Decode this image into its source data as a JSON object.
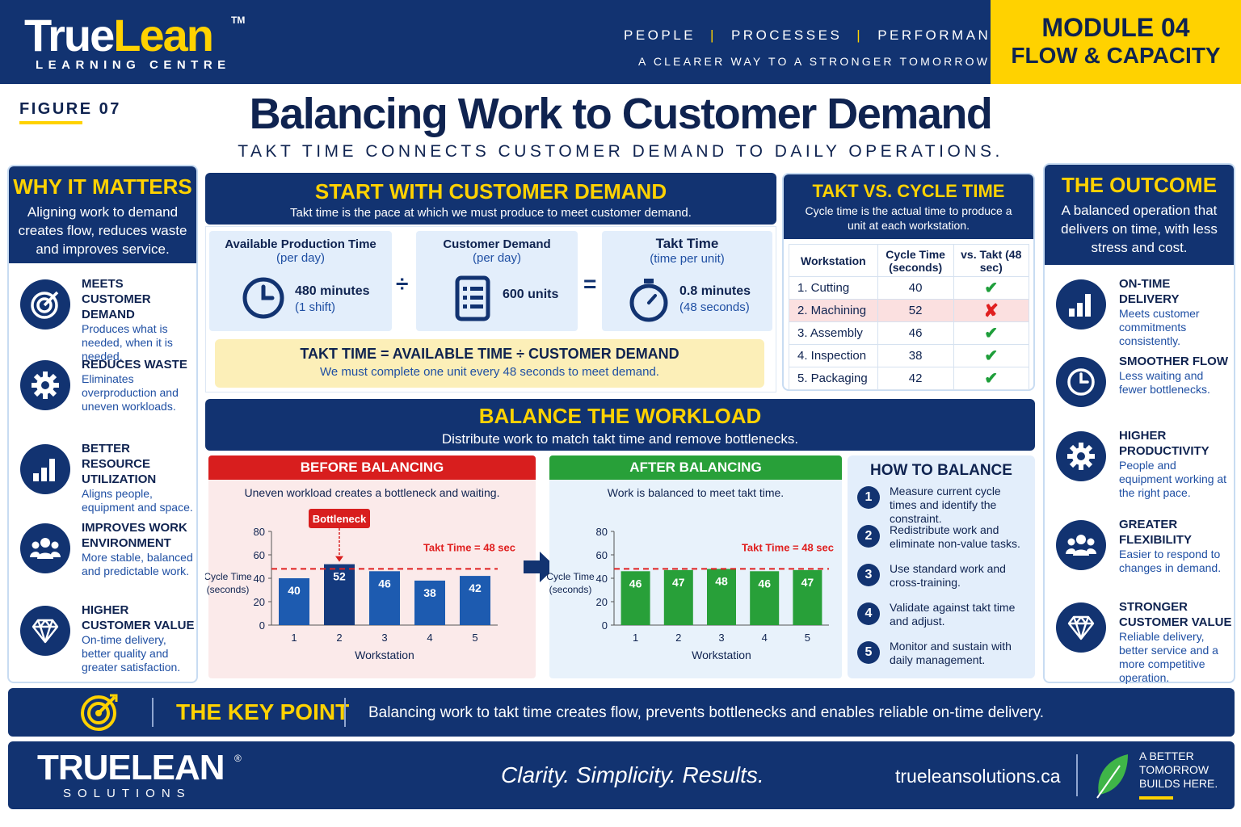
{
  "header": {
    "logo_a": "True",
    "logo_b": "Lean",
    "logo_tm": "TM",
    "logo_sub": "LEARNING CENTRE",
    "tag_people": "PEOPLE",
    "tag_processes": "PROCESSES",
    "tag_performance": "PERFORMANCE",
    "tag_sep": "|",
    "tagline2": "A CLEARER WAY TO A STRONGER TOMORROW",
    "module_num": "MODULE 04",
    "module_name": "FLOW & CAPACITY"
  },
  "figure": "FIGURE 07",
  "title": "Balancing Work to Customer Demand",
  "subtitle": "TAKT TIME CONNECTS CUSTOMER DEMAND TO DAILY OPERATIONS.",
  "why": {
    "heading": "WHY IT MATTERS",
    "intro": "Aligning work to demand creates flow, reduces waste and improves service.",
    "items": [
      {
        "icon": "target-icon",
        "t1": "MEETS",
        "t2": "CUSTOMER DEMAND",
        "desc": "Produces what is needed, when it is needed."
      },
      {
        "icon": "gear-icon",
        "t1": "REDUCES WASTE",
        "t2": "",
        "desc": "Eliminates overproduction and uneven workloads."
      },
      {
        "icon": "bar-chart-icon",
        "t1": "BETTER RESOURCE",
        "t2": "UTILIZATION",
        "desc": "Aligns people, equipment and space."
      },
      {
        "icon": "people-icon",
        "t1": "IMPROVES WORK",
        "t2": "ENVIRONMENT",
        "desc": "More stable, balanced and predictable work."
      },
      {
        "icon": "diamond-icon",
        "t1": "HIGHER",
        "t2": "CUSTOMER VALUE",
        "desc": "On-time delivery, better quality and greater satisfaction."
      }
    ]
  },
  "demand": {
    "heading": "START WITH CUSTOMER DEMAND",
    "sub": "Takt time is the pace at which we must produce to meet customer demand.",
    "avail_title": "Available Production Time",
    "avail_sub": "(per day)",
    "avail_val": "480 minutes",
    "avail_val2": "(1 shift)",
    "div": "÷",
    "cust_title": "Customer Demand",
    "cust_sub": "(per day)",
    "cust_val": "600 units",
    "eq": "=",
    "takt_title": "Takt Time",
    "takt_sub": "(time per unit)",
    "takt_val": "0.8 minutes",
    "takt_val2": "(48 seconds)",
    "formula": "TAKT TIME = AVAILABLE TIME ÷ CUSTOMER DEMAND",
    "formula_sub": "We must complete one unit every 48 seconds to meet demand."
  },
  "takt_vs": {
    "heading": "TAKT VS. CYCLE TIME",
    "sub": "Cycle time is the actual time to produce a unit at each workstation.",
    "col1": "Workstation",
    "col2": "Cycle Time (seconds)",
    "col3": "vs. Takt (48 sec)",
    "rows": [
      {
        "ws": "1.  Cutting",
        "ct": "40",
        "ok": "✔"
      },
      {
        "ws": "2.  Machining",
        "ct": "52",
        "ok": "✘"
      },
      {
        "ws": "3.  Assembly",
        "ct": "46",
        "ok": "✔"
      },
      {
        "ws": "4.  Inspection",
        "ct": "38",
        "ok": "✔"
      },
      {
        "ws": "5.  Packaging",
        "ct": "42",
        "ok": "✔"
      }
    ]
  },
  "balance": {
    "heading": "BALANCE THE WORKLOAD",
    "sub": "Distribute work to match takt time and remove bottlenecks.",
    "before_head": "BEFORE BALANCING",
    "before_sub": "Uneven workload creates a bottleneck and waiting.",
    "after_head": "AFTER BALANCING",
    "after_sub": "Work is balanced to meet takt time.",
    "bottleneck": "Bottleneck",
    "takt_label": "Takt Time = 48 sec",
    "ylabel_1": "Cycle Time",
    "ylabel_2": "(seconds)",
    "xlabel": "Workstation"
  },
  "chart_data": [
    {
      "type": "bar",
      "title": "BEFORE BALANCING",
      "categories": [
        "1",
        "2",
        "3",
        "4",
        "5"
      ],
      "values": [
        40,
        52,
        46,
        38,
        42
      ],
      "xlabel": "Workstation",
      "ylabel": "Cycle Time (seconds)",
      "ylim": [
        0,
        80
      ],
      "yticks": [
        0,
        20,
        40,
        60,
        80
      ],
      "reference_line": {
        "value": 48,
        "label": "Takt Time = 48 sec"
      },
      "colors": {
        "bar": "#1d5bb0",
        "highlight": "#143a7e",
        "line": "#e02020"
      }
    },
    {
      "type": "bar",
      "title": "AFTER BALANCING",
      "categories": [
        "1",
        "2",
        "3",
        "4",
        "5"
      ],
      "values": [
        46,
        47,
        48,
        46,
        47
      ],
      "xlabel": "Workstation",
      "ylabel": "Cycle Time (seconds)",
      "ylim": [
        0,
        80
      ],
      "yticks": [
        0,
        20,
        40,
        60,
        80
      ],
      "reference_line": {
        "value": 48,
        "label": "Takt Time = 48 sec"
      },
      "colors": {
        "bar": "#28a039",
        "line": "#e02020"
      }
    }
  ],
  "how": {
    "heading": "HOW TO BALANCE",
    "steps": [
      {
        "n": "1",
        "t": "Measure current cycle times and identify the constraint."
      },
      {
        "n": "2",
        "t": "Redistribute work and eliminate non-value tasks."
      },
      {
        "n": "3",
        "t": "Use standard work and cross-training."
      },
      {
        "n": "4",
        "t": "Validate against takt time and adjust."
      },
      {
        "n": "5",
        "t": "Monitor and sustain with daily management."
      }
    ]
  },
  "outcome": {
    "heading": "THE OUTCOME",
    "intro": "A balanced operation that delivers on time, with less stress and cost.",
    "items": [
      {
        "icon": "bar-chart-icon",
        "t1": "ON-TIME DELIVERY",
        "t2": "",
        "desc": "Meets customer commitments consistently."
      },
      {
        "icon": "clock-icon",
        "t1": "SMOOTHER FLOW",
        "t2": "",
        "desc": "Less waiting and fewer bottlenecks."
      },
      {
        "icon": "gear-icon",
        "t1": "HIGHER",
        "t2": "PRODUCTIVITY",
        "desc": "People and equipment working at the right pace."
      },
      {
        "icon": "people-icon",
        "t1": "GREATER",
        "t2": "FLEXIBILITY",
        "desc": "Easier to respond to changes in demand."
      },
      {
        "icon": "diamond-icon",
        "t1": "STRONGER",
        "t2": "CUSTOMER VALUE",
        "desc": "Reliable delivery, better service and a more competitive operation."
      }
    ]
  },
  "key": {
    "heading": "THE KEY POINT",
    "text": "Balancing work to takt time creates flow, prevents bottlenecks and enables reliable on-time delivery."
  },
  "footer": {
    "logo": "TRUELEAN",
    "reg": "®",
    "logo_sub": "SOLUTIONS",
    "slogan": "Clarity. Simplicity. Results.",
    "url": "trueleansolutions.ca",
    "right1": "A BETTER",
    "right2": "TOMORROW",
    "right3": "BUILDS HERE."
  },
  "colors": {
    "navy": "#123371",
    "yellow": "#ffd200",
    "red": "#d81e1e",
    "green": "#28a039"
  }
}
